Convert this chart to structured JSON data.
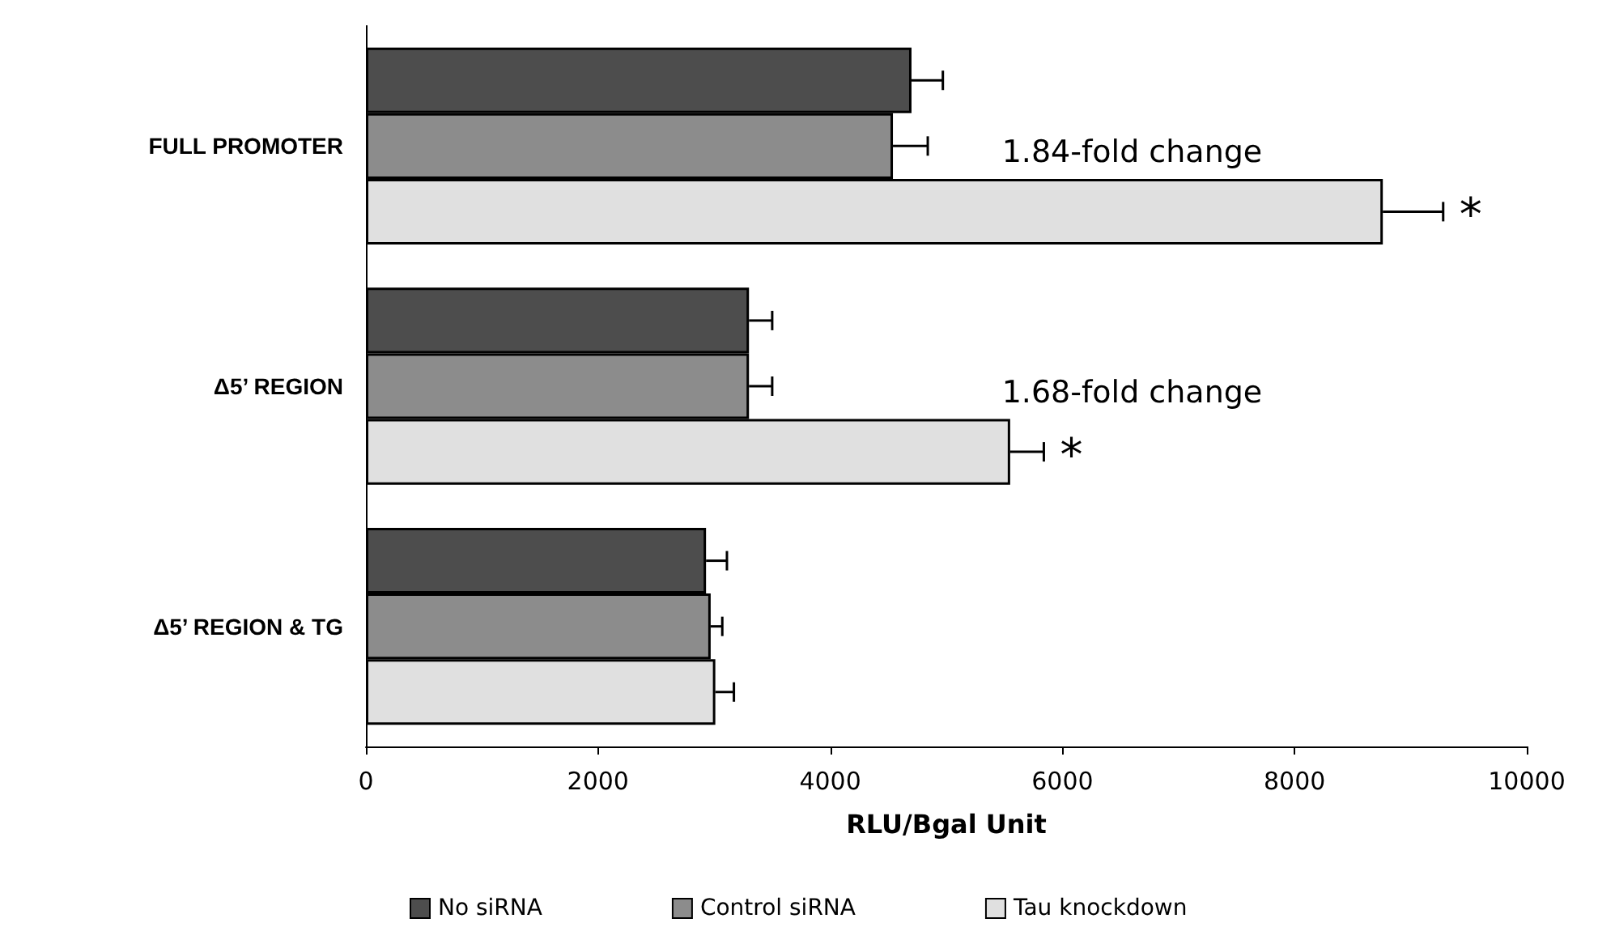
{
  "chart_data": {
    "type": "bar",
    "orientation": "horizontal",
    "categories": [
      "FULL PROMOTER",
      "Δ5’ REGION",
      "Δ5’ REGION & TG"
    ],
    "series": [
      {
        "name": "No siRNA",
        "color": "#4d4d4d",
        "values": [
          4700,
          3300,
          2930
        ],
        "errors": [
          270,
          200,
          180
        ]
      },
      {
        "name": "Control siRNA",
        "color": "#8c8c8c",
        "values": [
          4540,
          3300,
          2970
        ],
        "errors": [
          300,
          200,
          100
        ]
      },
      {
        "name": "Tau knockdown",
        "color": "#e0e0e0",
        "values": [
          8760,
          5550,
          3010
        ],
        "errors": [
          520,
          290,
          160
        ]
      }
    ],
    "xlabel": "RLU/Bgal Unit",
    "xlim": [
      0,
      10000
    ],
    "xticks": [
      0,
      2000,
      4000,
      6000,
      8000,
      10000
    ],
    "grid": false,
    "legend": "bottom",
    "annotations": [
      "1.84-fold change",
      "*",
      "1.68-fold change",
      "*"
    ]
  }
}
